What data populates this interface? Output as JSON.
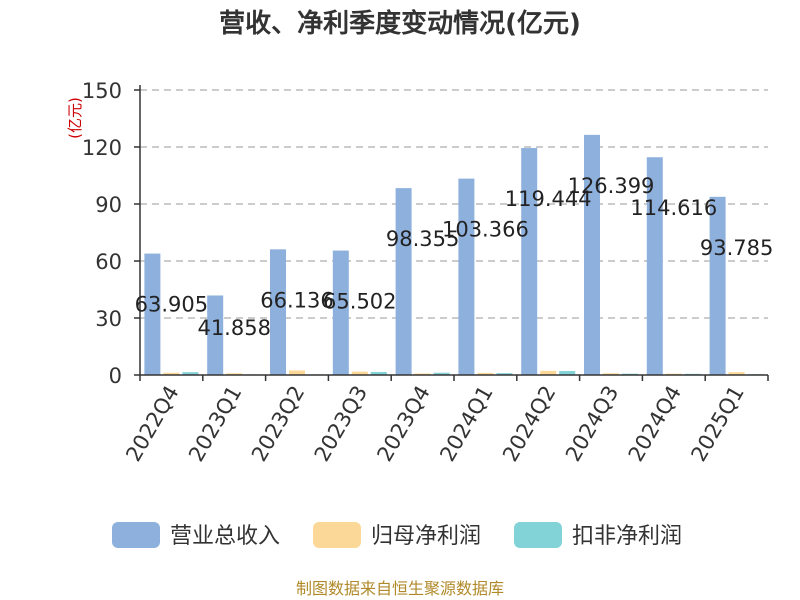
{
  "chart_data": {
    "type": "bar",
    "title": "营收、净利季度变动情况(亿元)",
    "unit_label": "(亿元)",
    "categories": [
      "2022Q4",
      "2023Q1",
      "2023Q2",
      "2023Q3",
      "2023Q4",
      "2024Q1",
      "2024Q2",
      "2024Q3",
      "2024Q4",
      "2025Q1"
    ],
    "ylim": [
      0,
      150
    ],
    "yticks": [
      0,
      30,
      60,
      90,
      120,
      150
    ],
    "grid": true,
    "legend_position": "bottom",
    "series": [
      {
        "name": "营业总收入",
        "color": "#8eb0dc",
        "values": [
          63.905,
          41.858,
          66.136,
          65.502,
          98.355,
          103.366,
          119.444,
          126.399,
          114.616,
          93.785
        ],
        "labels": [
          "63.905",
          "41.858",
          "66.136",
          "65.502",
          "98.355",
          "103.366",
          "119.444",
          "126.399",
          "114.616",
          "93.785"
        ]
      },
      {
        "name": "归母净利润",
        "color": "#fcd898",
        "values": [
          1.2,
          0.9,
          2.4,
          1.8,
          0.8,
          1.1,
          2.2,
          0.9,
          0.7,
          1.5
        ]
      },
      {
        "name": "扣非净利润",
        "color": "#82d3d8",
        "values": [
          1.5,
          0.3,
          0.3,
          1.6,
          1.2,
          1.0,
          2.1,
          0.7,
          0.6,
          0.4
        ]
      }
    ],
    "source": "制图数据来自恒生聚源数据库"
  }
}
